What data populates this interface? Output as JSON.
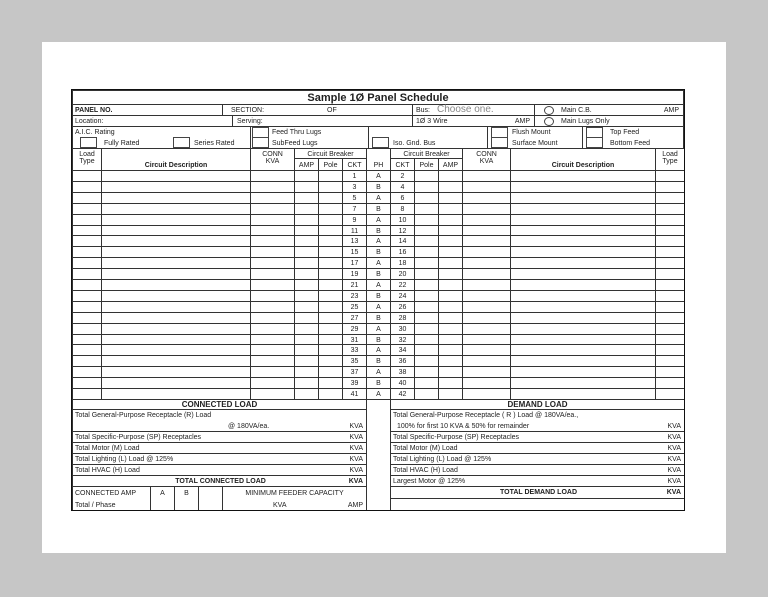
{
  "title": "Sample 1Ø Panel Schedule",
  "header": {
    "panel_no": "PANEL NO.",
    "section": "SECTION:",
    "of": "OF",
    "bus": "Bus:",
    "bus_value": "Choose one.",
    "main_cb": "Main C.B.",
    "amp": "AMP",
    "location": "Location:",
    "serving": "Serving:",
    "wire": "1Ø 3 Wire",
    "main_lugs": "Main Lugs Only",
    "aic": "A.I.C. Rating",
    "fully_rated": "Fully Rated",
    "series_rated": "Series Rated",
    "feed_thru": "Feed Thru Lugs",
    "subfeed": "SubFeed Lugs",
    "iso": "Iso. Gnd. Bus",
    "flush": "Flush Mount",
    "surface": "Surface Mount",
    "top_feed": "Top Feed",
    "bottom_feed": "Bottom Feed"
  },
  "columns": {
    "load": "Load",
    "type": "Type",
    "desc": "Circuit Description",
    "conn": "CONN",
    "kva": "KVA",
    "cb": "Circuit Breaker",
    "amp": "AMP",
    "pole": "Pole",
    "ckt": "CKT",
    "ph": "PH"
  },
  "circuits": {
    "left": [
      1,
      3,
      5,
      7,
      9,
      11,
      13,
      15,
      17,
      19,
      21,
      23,
      25,
      27,
      29,
      31,
      33,
      35,
      37,
      39,
      41
    ],
    "phase": [
      "A",
      "B",
      "A",
      "B",
      "A",
      "B",
      "A",
      "B",
      "A",
      "B",
      "A",
      "B",
      "A",
      "B",
      "A",
      "B",
      "A",
      "B",
      "A",
      "B",
      "A"
    ],
    "right": [
      2,
      4,
      6,
      8,
      10,
      12,
      14,
      16,
      18,
      20,
      22,
      24,
      26,
      28,
      30,
      32,
      34,
      36,
      38,
      40,
      42
    ]
  },
  "connected": {
    "title": "CONNECTED LOAD",
    "r1": "Total General-Purpose Receptacle (R) Load",
    "r1b": "@ 180VA/ea.",
    "sp": "Total Specific-Purpose (SP) Receptacles",
    "m": "Total Motor (M) Load",
    "l": "Total Lighting (L) Load @ 125%",
    "h": "Total HVAC (H) Load",
    "total": "TOTAL CONNECTED LOAD",
    "kva": "KVA",
    "amp_label": "CONNECTED AMP",
    "a": "A",
    "b": "B",
    "per_phase": "Total / Phase",
    "feeder": "MINIMUM FEEDER CAPACITY",
    "amp": "AMP"
  },
  "demand": {
    "title": "DEMAND LOAD",
    "r1": "Total General-Purpose Receptacle ( R ) Load @ 180VA/ea.,",
    "r1b": "100% for first 10 KVA & 50% for remainder",
    "sp": "Total Specific-Purpose (SP) Receptacles",
    "m": "Total Motor (M) Load",
    "l": "Total Lighting (L) Load @ 125%",
    "h": "Total HVAC (H) Load",
    "motor": "Largest Motor @ 125%",
    "total": "TOTAL DEMAND LOAD",
    "kva": "KVA"
  }
}
